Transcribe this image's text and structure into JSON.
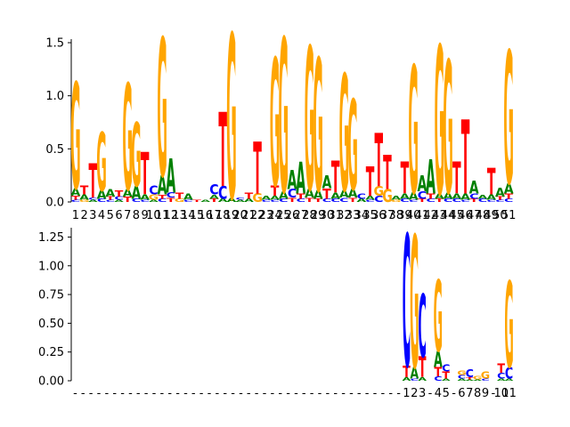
{
  "colors": {
    "A": "#008000",
    "C": "#0000ff",
    "G": "#ffa500",
    "T": "#ff0000"
  },
  "chart_data": [
    {
      "type": "sequence-logo",
      "title": "",
      "xlabel": "",
      "ylabel": "",
      "ylim": [
        0,
        1.5
      ],
      "yticks": [
        0.0,
        0.5,
        1.0,
        1.5
      ],
      "ytick_labels": [
        "0.0",
        "0.5",
        "1.0",
        "1.5"
      ],
      "xtick_labels": [
        "1",
        "2",
        "3",
        "4",
        "5",
        "6",
        "7",
        "8",
        "9",
        "10",
        "11",
        "12",
        "13",
        "14",
        "15",
        "16",
        "17",
        "18",
        "19",
        "20",
        "21",
        "22",
        "23",
        "24",
        "25",
        "26",
        "27",
        "28",
        "29",
        "30",
        "31",
        "32",
        "33",
        "34",
        "35",
        "36",
        "37",
        "38",
        "39",
        "40",
        "41",
        "42",
        "43",
        "44",
        "45",
        "46",
        "47",
        "48",
        "49",
        "50",
        "51"
      ],
      "columns": [
        {
          "A": 0.07,
          "T": 0.04,
          "C": 0.02,
          "G": 1.0
        },
        {
          "T": 0.08,
          "A": 0.05,
          "G": 0.02
        },
        {
          "T": 0.32,
          "A": 0.02,
          "C": 0.02
        },
        {
          "A": 0.08,
          "C": 0.03,
          "G": 0.55
        },
        {
          "A": 0.07,
          "T": 0.03,
          "C": 0.02
        },
        {
          "T": 0.06,
          "C": 0.03,
          "A": 0.02
        },
        {
          "A": 0.07,
          "T": 0.05,
          "G": 1.0
        },
        {
          "A": 0.12,
          "C": 0.03,
          "G": 0.6
        },
        {
          "T": 0.4,
          "A": 0.05,
          "C": 0.02
        },
        {
          "C": 0.08,
          "G": 0.05,
          "A": 0.02
        },
        {
          "A": 0.18,
          "T": 0.04,
          "C": 0.03,
          "G": 1.3
        },
        {
          "A": 0.32,
          "C": 0.05,
          "T": 0.04
        },
        {
          "T": 0.06,
          "G": 0.03
        },
        {
          "A": 0.06,
          "C": 0.02
        },
        {
          "T": 0.02
        },
        {
          "A": 0.02
        },
        {
          "C": 0.1,
          "A": 0.04,
          "T": 0.03
        },
        {
          "T": 0.7,
          "C": 0.12,
          "A": 0.03
        },
        {
          "A": 0.04,
          "G": 1.55
        },
        {
          "A": 0.02,
          "C": 0.02
        },
        {
          "T": 0.06,
          "A": 0.03
        },
        {
          "T": 0.49,
          "G": 0.08
        },
        {
          "A": 0.04,
          "C": 0.02
        },
        {
          "T": 0.1,
          "A": 0.04,
          "C": 0.02,
          "G": 1.2
        },
        {
          "A": 0.07,
          "C": 0.03,
          "G": 1.45
        },
        {
          "A": 0.18,
          "C": 0.08,
          "T": 0.04
        },
        {
          "A": 0.3,
          "T": 0.05,
          "C": 0.03
        },
        {
          "A": 0.08,
          "T": 0.04,
          "G": 1.35
        },
        {
          "A": 0.08,
          "T": 0.03,
          "G": 1.25
        },
        {
          "A": 0.12,
          "T": 0.1,
          "C": 0.03
        },
        {
          "T": 0.3,
          "A": 0.06,
          "C": 0.03
        },
        {
          "A": 0.07,
          "C": 0.04,
          "G": 1.1
        },
        {
          "A": 0.08,
          "T": 0.04,
          "G": 0.85
        },
        {
          "C": 0.05,
          "A": 0.03
        },
        {
          "T": 0.28,
          "A": 0.04,
          "C": 0.02
        },
        {
          "T": 0.5,
          "C": 0.06,
          "G": 0.09
        },
        {
          "T": 0.32,
          "G": 0.12
        },
        {
          "A": 0.04,
          "G": 0.02
        },
        {
          "T": 0.3,
          "A": 0.05,
          "C": 0.03
        },
        {
          "A": 0.07,
          "C": 0.02,
          "G": 1.2
        },
        {
          "A": 0.15,
          "C": 0.07,
          "T": 0.03
        },
        {
          "A": 0.32,
          "T": 0.05,
          "C": 0.03
        },
        {
          "A": 0.05,
          "T": 0.03,
          "G": 1.4
        },
        {
          "A": 0.06,
          "C": 0.03,
          "G": 1.25
        },
        {
          "T": 0.3,
          "A": 0.05,
          "C": 0.03
        },
        {
          "T": 0.7,
          "A": 0.06,
          "C": 0.02
        },
        {
          "A": 0.12,
          "C": 0.05,
          "T": 0.03
        },
        {
          "A": 0.04,
          "C": 0.03
        },
        {
          "T": 0.25,
          "A": 0.05,
          "C": 0.02
        },
        {
          "A": 0.08,
          "T": 0.03,
          "C": 0.02
        },
        {
          "A": 0.1,
          "T": 0.05,
          "C": 0.03,
          "G": 1.25
        }
      ]
    },
    {
      "type": "sequence-logo",
      "title": "",
      "xlabel": "",
      "ylabel": "",
      "ylim": [
        0,
        1.3
      ],
      "yticks": [
        0.0,
        0.25,
        0.5,
        0.75,
        1.0,
        1.25
      ],
      "ytick_labels": [
        "0.00",
        "0.25",
        "0.50",
        "0.75",
        "1.00",
        "1.25"
      ],
      "xtick_labels": [
        "-",
        "-",
        "-",
        "-",
        "-",
        "-",
        "-",
        "-",
        "-",
        "-",
        "-",
        "-",
        "-",
        "-",
        "-",
        "-",
        "-",
        "-",
        "-",
        "-",
        "-",
        "-",
        "-",
        "-",
        "-",
        "-",
        "-",
        "-",
        "-",
        "-",
        "-",
        "-",
        "-",
        "-",
        "-",
        "-",
        "-",
        "-",
        "-",
        "-",
        "-",
        "-",
        "1",
        "2",
        "3",
        "-",
        "4",
        "5",
        "-",
        "6",
        "7",
        "8",
        "9",
        "-",
        "10",
        "11"
      ],
      "columns": [
        {},
        {},
        {},
        {},
        {},
        {},
        {},
        {},
        {},
        {},
        {},
        {},
        {},
        {},
        {},
        {},
        {},
        {},
        {},
        {},
        {},
        {},
        {},
        {},
        {},
        {},
        {},
        {},
        {},
        {},
        {},
        {},
        {},
        {},
        {},
        {},
        {},
        {},
        {},
        {},
        {},
        {},
        {
          "A": 0.03,
          "T": 0.1,
          "C": 1.15
        },
        {
          "A": 0.1,
          "C": 0.02,
          "G": 1.15
        },
        {
          "A": 0.03,
          "T": 0.18,
          "C": 0.55
        },
        {},
        {
          "T": 0.08,
          "C": 0.04,
          "A": 0.14,
          "G": 0.62
        },
        {
          "T": 0.06,
          "C": 0.06,
          "A": 0.02
        },
        {},
        {
          "A": 0.02,
          "C": 0.03,
          "G": 0.04
        },
        {
          "A": 0.01,
          "T": 0.02,
          "C": 0.07
        },
        {
          "A": 0.01,
          "G": 0.03
        },
        {
          "C": 0.02,
          "G": 0.06
        },
        {},
        {
          "A": 0.02,
          "C": 0.05,
          "T": 0.08,
          "C2": 0.0,
          "Cx": 0.0,
          "G": 0.0,
          "CC": 0.0
        },
        {
          "A": 0.02,
          "C": 0.1,
          "A2": 0.0,
          "G": 0.75
        }
      ]
    }
  ]
}
